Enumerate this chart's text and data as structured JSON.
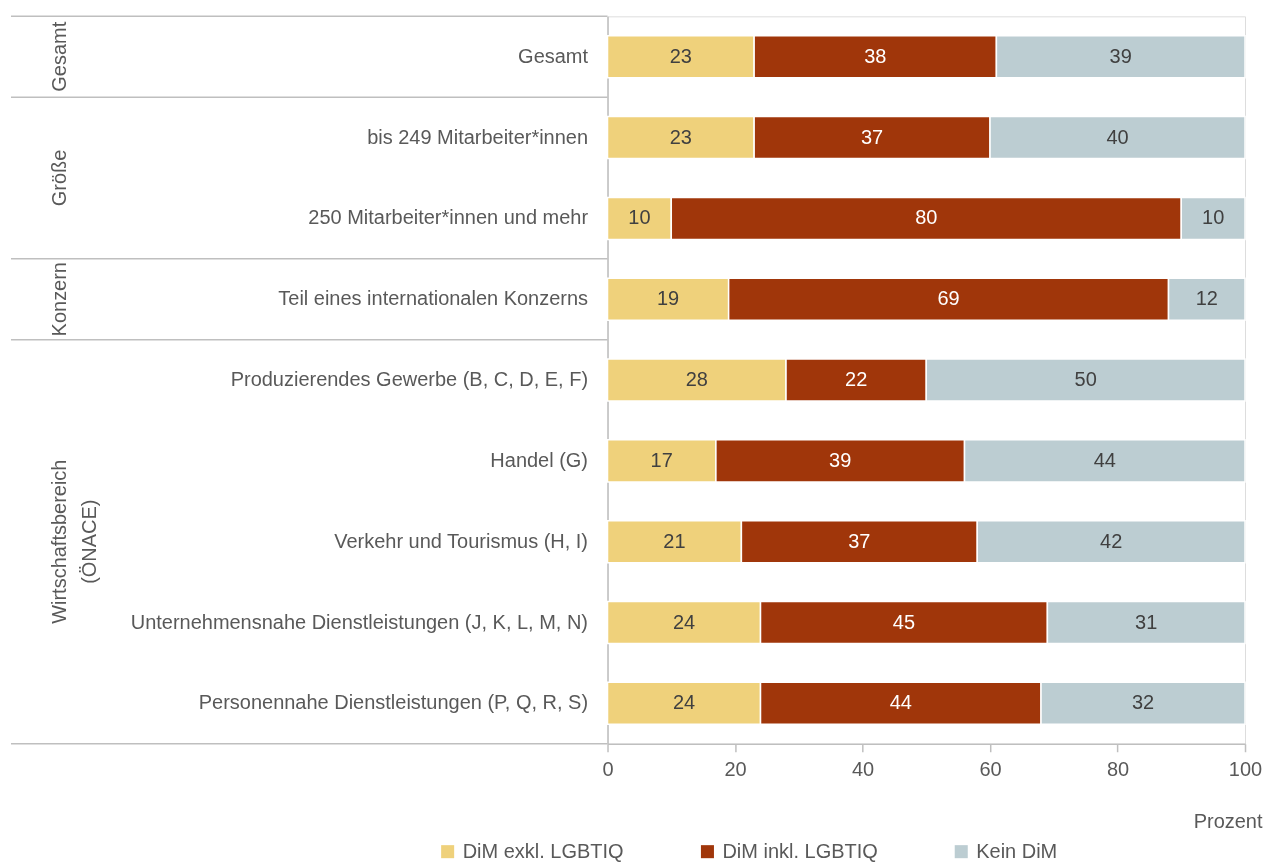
{
  "chart_data": {
    "type": "bar",
    "orientation": "horizontal",
    "stacked": true,
    "data_labels": true,
    "categories": [
      "Gesamt",
      "bis 249 Mitarbeiter*innen",
      "250 Mitarbeiter*innen und mehr",
      "Teil eines internationalen Konzerns",
      "Produzierendes Gewerbe (B, C, D, E, F)",
      "Handel (G)",
      "Verkehr und Tourismus (H, I)",
      "Unternehmensnahe Dienstleistungen (J, K, L, M, N)",
      "Personennahe Dienstleistungen (P, Q, R, S)"
    ],
    "series": [
      {
        "name": "DiM exkl. LGBTIQ",
        "color": "#efd17b",
        "values": [
          23,
          23,
          10,
          19,
          28,
          17,
          21,
          24,
          24
        ]
      },
      {
        "name": "DiM inkl. LGBTIQ",
        "color": "#a0360a",
        "values": [
          38,
          37,
          80,
          69,
          22,
          39,
          37,
          45,
          44
        ]
      },
      {
        "name": "Kein DiM",
        "color": "#bccdd2",
        "values": [
          39,
          40,
          10,
          12,
          50,
          44,
          42,
          31,
          32
        ]
      }
    ],
    "xlabel": "Prozent",
    "xlim": [
      0,
      100
    ],
    "xticks": [
      0,
      20,
      40,
      60,
      80,
      100
    ],
    "legend": "bottom",
    "annotations": [
      "Gesamt",
      "Größe",
      "Konzern",
      "Wirtschaftsbereich (ÖNACE)"
    ]
  }
}
